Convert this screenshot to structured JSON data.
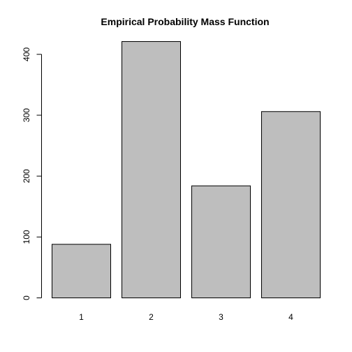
{
  "chart_data": {
    "type": "bar",
    "title": "Empirical Probability Mass Function",
    "xlabel": "",
    "ylabel": "",
    "categories": [
      "1",
      "2",
      "3",
      "4"
    ],
    "values": [
      88,
      421,
      184,
      306
    ],
    "ylim": [
      0,
      421
    ],
    "yticks": [
      0,
      100,
      200,
      300,
      400
    ],
    "grid": false,
    "legend": "none",
    "colors": {
      "bar_fill": "#bebebe",
      "bar_stroke": "#000000"
    }
  }
}
